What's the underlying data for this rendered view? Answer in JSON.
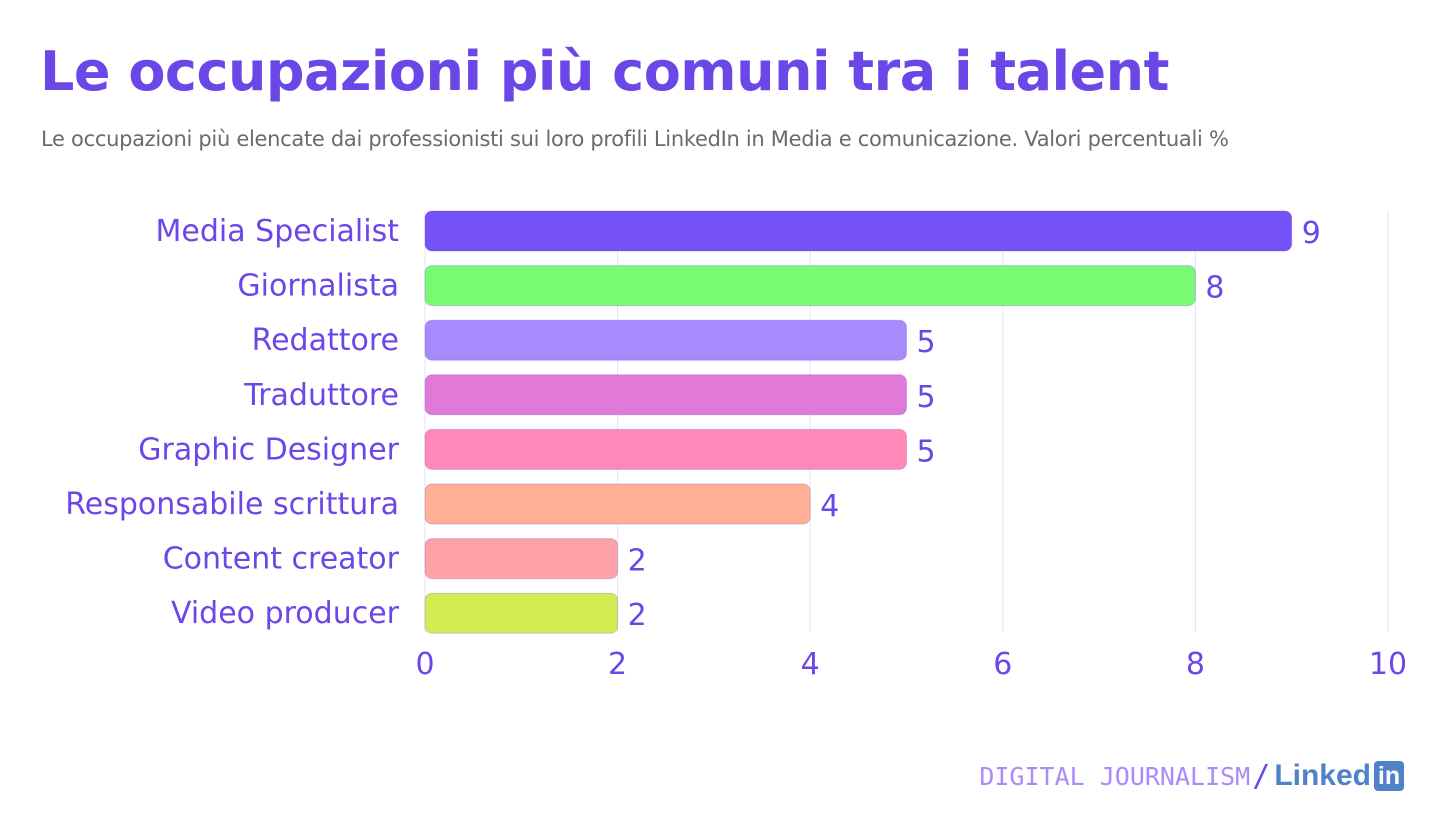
{
  "title": "Le occupazioni più comuni tra i talent",
  "subtitle": "Le occupazioni più elencate dai professionisti sui loro profili LinkedIn in Media e comunicazione. Valori percentuali %",
  "footer": {
    "brand": "DIGITAL JOURNALISM",
    "separator": "/",
    "partner_text": "Linked",
    "partner_badge": "in"
  },
  "colors": {
    "accent": "#6c47e8",
    "grid": "#e4e0fb"
  },
  "chart_data": {
    "type": "bar",
    "orientation": "horizontal",
    "categories": [
      "Media Specialist",
      "Giornalista",
      "Redattore",
      "Traduttore",
      "Graphic Designer",
      "Responsabile scrittura",
      "Content creator",
      "Video producer"
    ],
    "values": [
      9,
      8,
      5,
      5,
      5,
      4,
      2,
      2
    ],
    "bar_colors": [
      "#7551f8",
      "#78fa72",
      "#a78afc",
      "#e07ad6",
      "#ff88b9",
      "#ffb095",
      "#ffa2a8",
      "#d4ec52"
    ],
    "xlim": [
      0,
      10
    ],
    "xticks": [
      0,
      2,
      4,
      6,
      8,
      10
    ],
    "grid": true,
    "xlabel": "",
    "ylabel": ""
  }
}
